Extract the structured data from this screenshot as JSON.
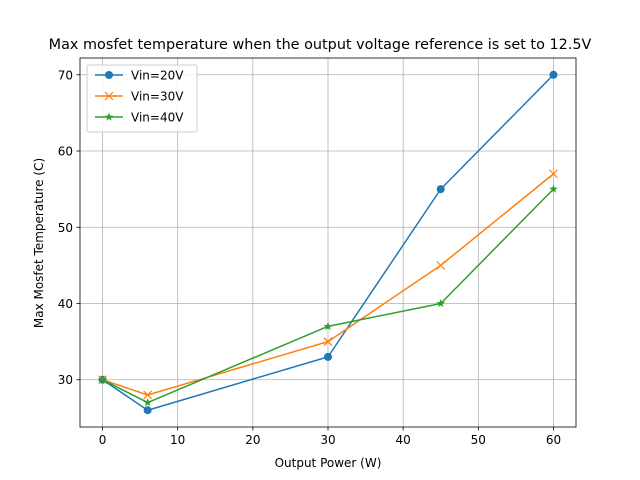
{
  "chart_data": {
    "type": "line",
    "title": "Max mosfet temperature when the output voltage reference is set to 12.5V",
    "xlabel": "Output Power (W)",
    "ylabel": "Max Mosfet Temperature (C)",
    "x": [
      0,
      6,
      30,
      45,
      60
    ],
    "xlim": [
      -3,
      63
    ],
    "ylim": [
      23.8,
      72.2
    ],
    "xticks": [
      0,
      10,
      20,
      30,
      40,
      50,
      60
    ],
    "yticks": [
      30,
      40,
      50,
      60,
      70
    ],
    "grid": true,
    "legend_position": "top-left",
    "series": [
      {
        "name": "Vin=20V",
        "color": "#1f77b4",
        "marker": "circle",
        "values": [
          30,
          26,
          33,
          55,
          70
        ]
      },
      {
        "name": "Vin=30V",
        "color": "#ff7f0e",
        "marker": "x",
        "values": [
          30,
          28,
          35,
          45,
          57
        ]
      },
      {
        "name": "Vin=40V",
        "color": "#2ca02c",
        "marker": "star",
        "values": [
          30,
          27,
          37,
          40,
          55
        ]
      }
    ]
  }
}
